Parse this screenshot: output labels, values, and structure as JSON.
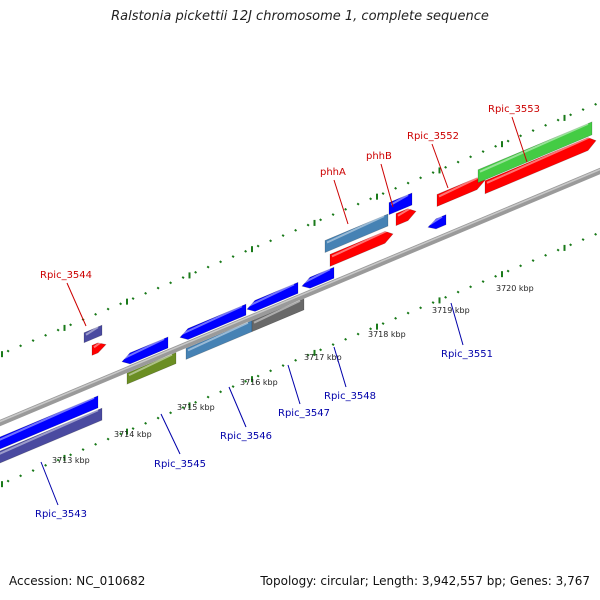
{
  "title": "Ralstonia pickettii 12J chromosome 1, complete sequence",
  "footer": {
    "accession": "Accession: NC_010682",
    "summary": "Topology: circular; Length: 3,942,557 bp; Genes: 3,767"
  },
  "colors": {
    "backbone": "#808080",
    "tick": "#1a7a1a",
    "label_top": "#cc0000",
    "label_bottom": "#0000aa"
  },
  "tick_labels": [
    "3713 kbp",
    "3714 kbp",
    "3715 kbp",
    "3716 kbp",
    "3717 kbp",
    "3718 kbp",
    "3719 kbp",
    "3720 kbp"
  ],
  "genes": [
    {
      "name": "Rpic_3543",
      "color": "#4a4aa0"
    },
    {
      "name": "Rpic_3544",
      "color": "#ff0000"
    },
    {
      "name": "Rpic_3545",
      "color": "#6b8e23"
    },
    {
      "name": "Rpic_3546",
      "color": "#4682b4"
    },
    {
      "name": "Rpic_3547",
      "color": "#696969"
    },
    {
      "name": "Rpic_3548",
      "color": "#0000ff"
    },
    {
      "name": "phhA",
      "color": "#ff0000"
    },
    {
      "name": "phhB",
      "color": "#ff0000"
    },
    {
      "name": "Rpic_3551",
      "color": "#0000ff"
    },
    {
      "name": "Rpic_3552",
      "color": "#ff0000"
    },
    {
      "name": "Rpic_3553",
      "color": "#ff0000"
    }
  ]
}
